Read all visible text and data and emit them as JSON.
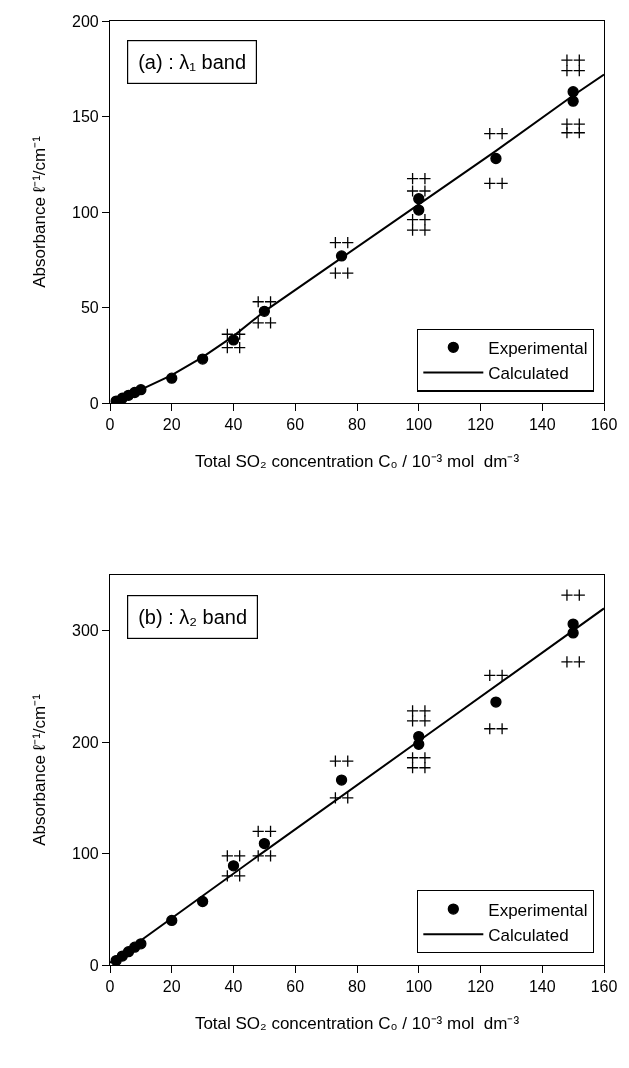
{
  "chart_data": [
    {
      "type": "scatter",
      "xlabel": "Total SO₂ concentration C₀ / 10⁻³ mol  dm⁻³",
      "ylabel": "Absorbance ℓ⁻¹/cm⁻¹",
      "annotations": [
        "(a) : λ₁ band"
      ],
      "xlim": [
        0,
        160
      ],
      "xticks": [
        0,
        20,
        40,
        60,
        80,
        100,
        120,
        140,
        160
      ],
      "ylim": [
        0,
        200
      ],
      "yticks": [
        0,
        50,
        100,
        150,
        200
      ],
      "grid": false,
      "legend": "bottom right",
      "series": [
        {
          "name": "Experimental",
          "type": "scatter",
          "marker": "circle",
          "color": "#000000",
          "x": [
            2,
            4,
            6,
            8,
            10,
            20,
            30,
            40,
            50,
            75,
            100,
            100,
            125,
            150,
            150
          ],
          "values": [
            1,
            2.5,
            4,
            5.5,
            7,
            13,
            23,
            33,
            48,
            77,
            107,
            101,
            128,
            163,
            158
          ]
        },
        {
          "name": "Calculated",
          "type": "line",
          "marker": "none",
          "line_style": "solid",
          "color": "#000000",
          "x": [
            2,
            10,
            20,
            30,
            40,
            50,
            75,
            100,
            125,
            150,
            160
          ],
          "values": [
            0.5,
            7,
            14.6,
            24,
            35,
            48,
            76,
            104,
            132,
            161,
            172
          ]
        },
        {
          "type": "scatter",
          "marker": "cross",
          "color": "#000000",
          "x": [
            38,
            42,
            38,
            42,
            48,
            52,
            48,
            52,
            73,
            77,
            73,
            77,
            98,
            102,
            98,
            102,
            98,
            102,
            98,
            102,
            123,
            127,
            123,
            127,
            148,
            152,
            148,
            152,
            148,
            152,
            148,
            152
          ],
          "values": [
            36,
            36,
            29,
            29,
            53,
            53,
            42,
            42,
            84,
            84,
            68,
            68,
            117.5,
            117.5,
            111,
            111,
            96,
            96,
            90.5,
            90.5,
            141,
            141,
            115,
            115,
            179.5,
            179.5,
            174,
            174,
            146,
            146,
            141.5,
            141.5
          ]
        }
      ]
    },
    {
      "type": "scatter",
      "xlabel": "Total SO₂ concentration C₀ / 10⁻³ mol  dm⁻³",
      "ylabel": "Absorbance ℓ⁻¹/cm⁻¹",
      "annotations": [
        "(b) : λ₂ band"
      ],
      "xlim": [
        0,
        160
      ],
      "xticks": [
        0,
        20,
        40,
        60,
        80,
        100,
        120,
        140,
        160
      ],
      "ylim": [
        0,
        350
      ],
      "yticks": [
        0,
        100,
        200,
        300
      ],
      "grid": false,
      "legend": "bottom right",
      "series": [
        {
          "name": "Experimental",
          "type": "scatter",
          "marker": "circle",
          "color": "#000000",
          "x": [
            2,
            4,
            6,
            8,
            10,
            20,
            30,
            40,
            50,
            75,
            100,
            100,
            125,
            150,
            150
          ],
          "values": [
            4,
            8,
            12,
            16,
            19,
            40,
            57,
            89,
            109,
            166,
            205,
            198,
            236,
            306,
            298
          ]
        },
        {
          "name": "Calculated",
          "type": "line",
          "marker": "none",
          "line_style": "solid",
          "color": "#000000",
          "x": [
            0,
            50,
            100,
            160
          ],
          "values": [
            2,
            102,
            201,
            320
          ]
        },
        {
          "type": "scatter",
          "marker": "cross",
          "color": "#000000",
          "x": [
            38,
            42,
            38,
            42,
            48,
            52,
            48,
            52,
            73,
            77,
            73,
            77,
            98,
            102,
            98,
            102,
            98,
            102,
            98,
            102,
            123,
            127,
            123,
            127,
            148,
            152,
            148,
            152
          ],
          "values": [
            98,
            98,
            80,
            80,
            120,
            120,
            98,
            98,
            183,
            183,
            150,
            150,
            228,
            228,
            219,
            219,
            186,
            186,
            177,
            177,
            260,
            260,
            212,
            212,
            332,
            332,
            272,
            272
          ]
        }
      ]
    }
  ]
}
